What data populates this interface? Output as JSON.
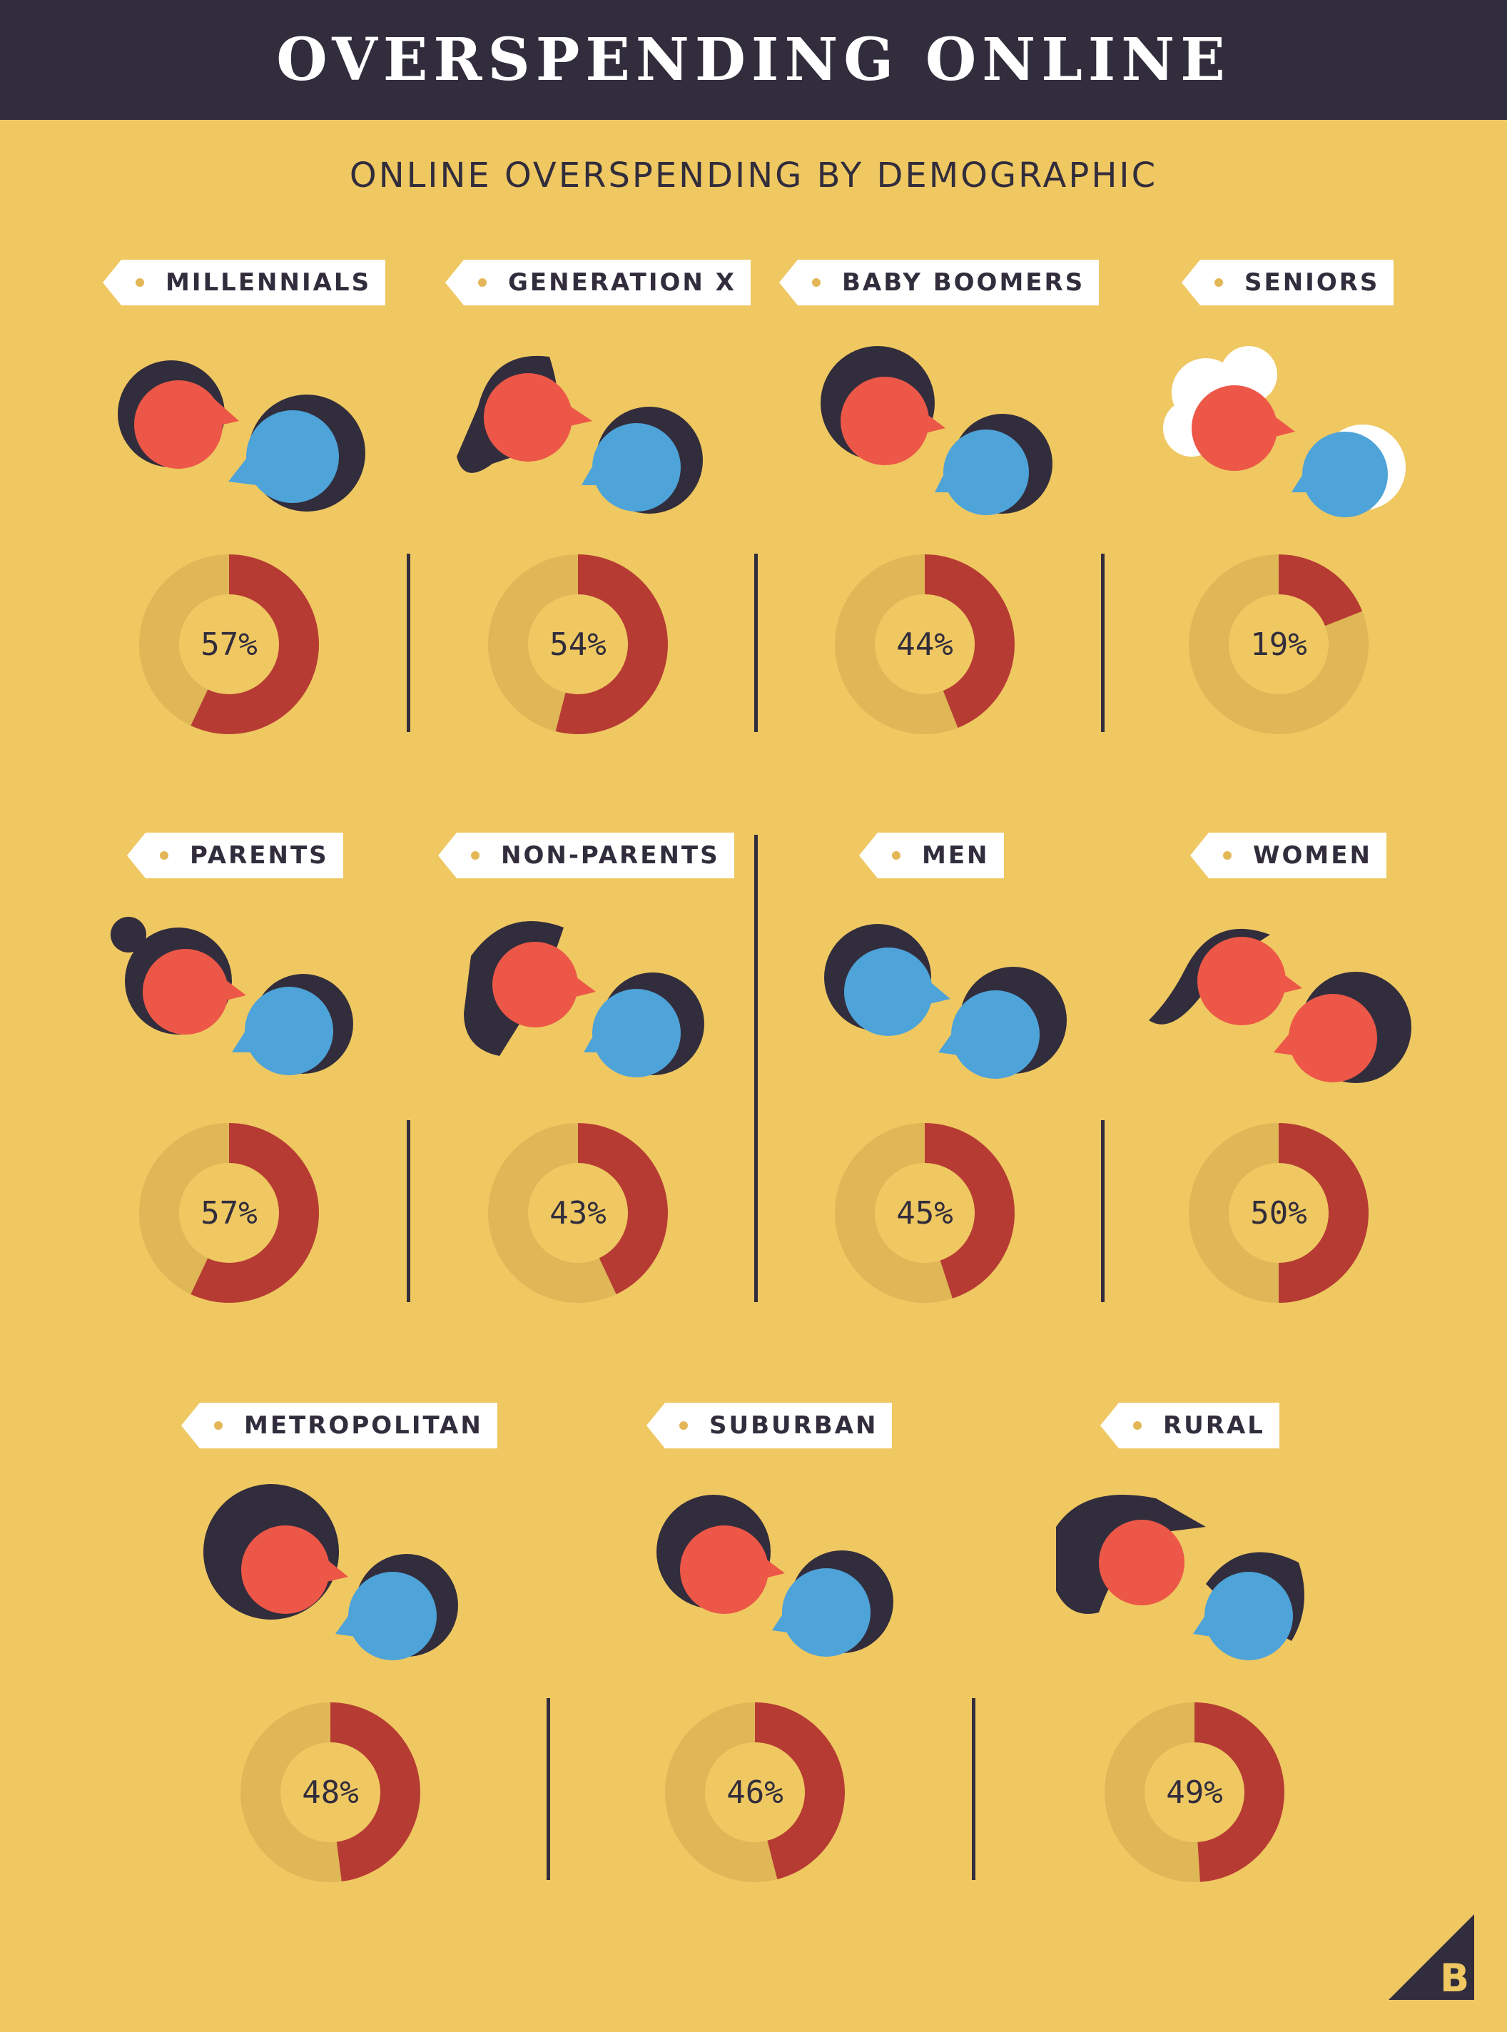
{
  "header": {
    "title": "OVERSPENDING ONLINE"
  },
  "subtitle": "ONLINE OVERSPENDING BY DEMOGRAPHIC",
  "colors": {
    "background": "#efc862",
    "header": "#322d3c",
    "donut_track": "#dfb757",
    "donut_value": "#b63c33",
    "face_red": "#ec5747",
    "face_blue": "#4ea3d8",
    "hair": "#322d3c"
  },
  "chart_data": {
    "type": "pie",
    "title": "ONLINE OVERSPENDING BY DEMOGRAPHIC",
    "unit": "%",
    "categories": [
      "MILLENNIALS",
      "GENERATION X",
      "BABY BOOMERS",
      "SENIORS",
      "PARENTS",
      "NON-PARENTS",
      "MEN",
      "WOMEN",
      "METROPOLITAN",
      "SUBURBAN",
      "RURAL"
    ],
    "values": [
      57,
      54,
      44,
      19,
      57,
      43,
      45,
      50,
      48,
      46,
      49
    ],
    "value_labels": [
      "57%",
      "54%",
      "44%",
      "19%",
      "57%",
      "43%",
      "45%",
      "50%",
      "48%",
      "46%",
      "49%"
    ]
  },
  "logo_icon": "bigcommerce-logo-icon"
}
